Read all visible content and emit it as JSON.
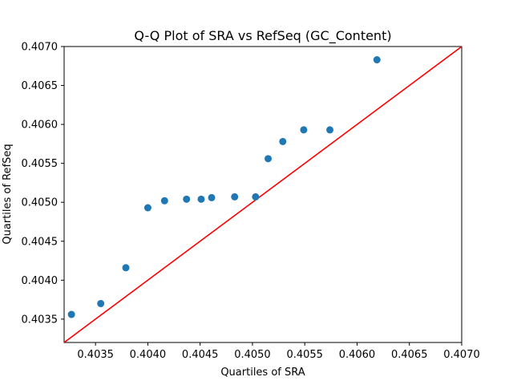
{
  "chart_data": {
    "type": "scatter",
    "title": "Q-Q Plot of SRA vs RefSeq (GC_Content)",
    "xlabel": "Quartiles of SRA",
    "ylabel": "Quartiles of RefSeq",
    "xlim": [
      0.4032,
      0.407
    ],
    "ylim": [
      0.4032,
      0.407
    ],
    "xticks": [
      0.4035,
      0.404,
      0.4045,
      0.405,
      0.4055,
      0.406,
      0.4065,
      0.407
    ],
    "yticks": [
      0.4035,
      0.404,
      0.4045,
      0.405,
      0.4055,
      0.406,
      0.4065,
      0.407
    ],
    "xtick_labels": [
      "0.4035",
      "0.4040",
      "0.4045",
      "0.4050",
      "0.4055",
      "0.4060",
      "0.4065",
      "0.4070"
    ],
    "ytick_labels": [
      "0.4035",
      "0.4040",
      "0.4045",
      "0.4050",
      "0.4055",
      "0.4060",
      "0.4065",
      "0.4070"
    ],
    "grid": false,
    "points": [
      {
        "x": 0.40327,
        "y": 0.40356
      },
      {
        "x": 0.40355,
        "y": 0.4037
      },
      {
        "x": 0.40379,
        "y": 0.40416
      },
      {
        "x": 0.404,
        "y": 0.40493
      },
      {
        "x": 0.40416,
        "y": 0.40502
      },
      {
        "x": 0.40437,
        "y": 0.40504
      },
      {
        "x": 0.40451,
        "y": 0.40504
      },
      {
        "x": 0.40461,
        "y": 0.40506
      },
      {
        "x": 0.40483,
        "y": 0.40507
      },
      {
        "x": 0.40503,
        "y": 0.40507
      },
      {
        "x": 0.40515,
        "y": 0.40556
      },
      {
        "x": 0.40529,
        "y": 0.40578
      },
      {
        "x": 0.40549,
        "y": 0.40593
      },
      {
        "x": 0.40574,
        "y": 0.40593
      },
      {
        "x": 0.40619,
        "y": 0.40683
      }
    ],
    "reference_line": {
      "x": [
        0.4032,
        0.407
      ],
      "y": [
        0.4032,
        0.407
      ]
    },
    "point_color": "#1f77b4",
    "line_color": "#ff0000"
  }
}
